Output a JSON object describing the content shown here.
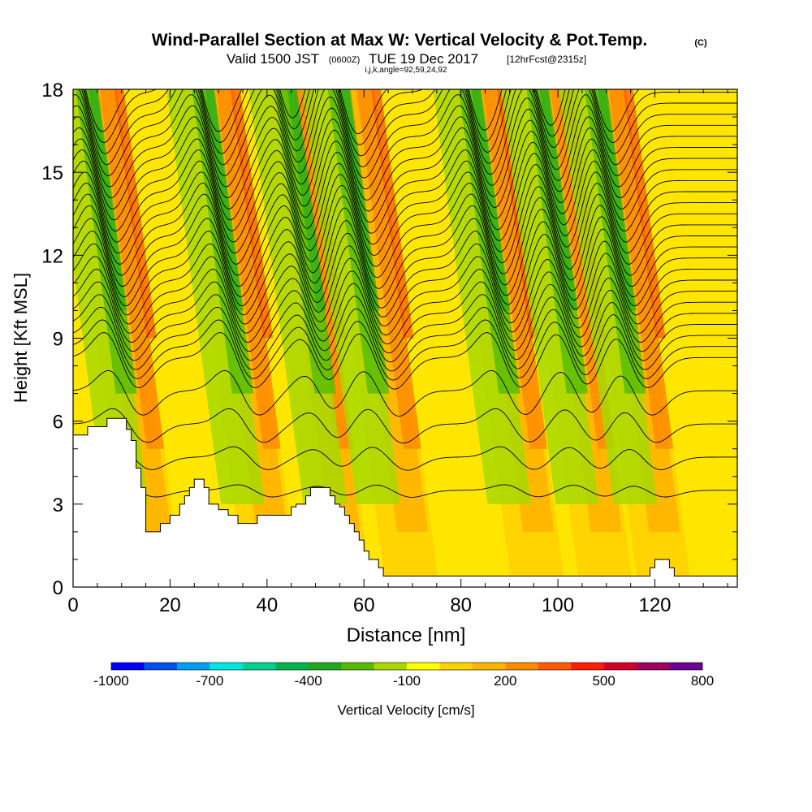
{
  "header": {
    "title": "Wind-Parallel Section at Max W: Vertical Velocity & Pot.Temp.",
    "title_mark": "(C)",
    "valid_prefix": "Valid 1500 JST",
    "valid_zulu": "(0600Z)",
    "valid_date": "TUE 19 Dec 2017",
    "forecast": "[12hrFcst@2315z]",
    "ijk": "i,j,k,angle=92,59,24,92"
  },
  "chart_data": {
    "type": "heatmap",
    "xlabel": "Distance [nm]",
    "ylabel": "Height [Kft MSL]",
    "xlim": [
      0,
      137
    ],
    "ylim": [
      0,
      18
    ],
    "xticks": [
      0,
      20,
      40,
      60,
      80,
      100,
      120
    ],
    "yticks": [
      0,
      3,
      6,
      9,
      12,
      15,
      18
    ],
    "grid": false,
    "colorbar": {
      "label": "Vertical Velocity [cm/s]",
      "tick_labels": [
        "-1000",
        "-700",
        "-400",
        "-100",
        "200",
        "500",
        "800"
      ],
      "min": -1000,
      "max": 800,
      "step": 100,
      "colors": [
        "#0000ff",
        "#0050f0",
        "#009ef0",
        "#00e6e6",
        "#00d08c",
        "#00b44b",
        "#1ea81e",
        "#55bb00",
        "#a8d800",
        "#ffff00",
        "#ffd200",
        "#ffb400",
        "#ff8c00",
        "#ff5a00",
        "#ff1e00",
        "#d00028",
        "#a00060",
        "#6e0096"
      ]
    },
    "updraft_columns_nm": [
      17,
      41,
      56,
      70,
      96,
      110,
      122
    ],
    "downdraft_columns_nm": [
      11,
      35,
      52,
      63,
      90,
      104,
      116
    ],
    "terrain_kft": {
      "x": [
        0,
        2,
        3,
        4,
        6,
        7,
        8,
        9,
        10,
        11,
        12,
        13,
        14,
        15,
        16,
        17,
        18,
        19,
        20,
        21,
        22,
        23,
        24,
        25,
        26,
        27,
        28,
        30,
        32,
        34,
        36,
        38,
        39,
        40,
        41,
        42,
        43,
        44,
        45,
        46,
        47,
        48,
        49,
        50,
        51,
        52,
        53,
        54,
        55,
        56,
        57,
        58,
        59,
        60,
        61,
        62,
        63,
        64,
        66,
        68,
        70,
        72,
        74,
        76,
        78,
        80,
        90,
        100,
        110,
        118,
        119,
        120,
        121,
        122,
        123,
        124,
        126,
        130,
        131
      ],
      "height": [
        5.5,
        5.5,
        5.8,
        5.8,
        5.8,
        6.1,
        6.1,
        6.1,
        6.1,
        5.7,
        5.3,
        4.3,
        3.6,
        2.0,
        2.0,
        2.0,
        2.3,
        2.3,
        2.6,
        2.6,
        3.0,
        3.3,
        3.6,
        3.9,
        3.9,
        3.6,
        3.0,
        2.8,
        2.6,
        2.3,
        2.3,
        2.6,
        2.6,
        2.6,
        2.6,
        2.6,
        2.6,
        2.6,
        2.9,
        3.0,
        3.0,
        3.3,
        3.6,
        3.6,
        3.6,
        3.6,
        3.3,
        3.0,
        2.9,
        2.6,
        2.3,
        2.0,
        1.7,
        1.3,
        1.0,
        1.0,
        0.7,
        0.4,
        0.4,
        0.4,
        0.4,
        0.4,
        0.4,
        0.4,
        0.4,
        0.4,
        0.4,
        0.4,
        0.4,
        0.4,
        0.7,
        1.0,
        1.0,
        1.0,
        0.7,
        0.4,
        0.4,
        0.4,
        0.4
      ]
    }
  }
}
